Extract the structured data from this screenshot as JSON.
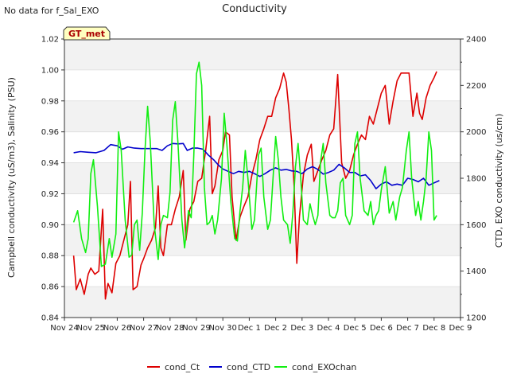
{
  "header": {
    "no_data_note": "No data for f_Sal_EXO",
    "title": "Conductivity",
    "badge": "GT_met"
  },
  "chart_data": {
    "type": "line",
    "title": "Conductivity",
    "ylabel_left": "Campbell conductivity (uS/m3), Salinity (PSU)",
    "ylabel_right": "CTD, EXO conductivity (us/cm)",
    "xlim": [
      0,
      15
    ],
    "ylim_left": [
      0.84,
      1.02
    ],
    "ylim_right": [
      1200,
      2400
    ],
    "x_ticks": [
      {
        "x": 0,
        "label": "Nov 24"
      },
      {
        "x": 1,
        "label": "Nov 25"
      },
      {
        "x": 2,
        "label": "Nov 26"
      },
      {
        "x": 3,
        "label": "Nov 27"
      },
      {
        "x": 4,
        "label": "Nov 28"
      },
      {
        "x": 5,
        "label": "Nov 29"
      },
      {
        "x": 6,
        "label": "Nov 30"
      },
      {
        "x": 7,
        "label": "Dec 1"
      },
      {
        "x": 8,
        "label": "Dec 2"
      },
      {
        "x": 9,
        "label": "Dec 3"
      },
      {
        "x": 10,
        "label": "Dec 4"
      },
      {
        "x": 11,
        "label": "Dec 5"
      },
      {
        "x": 12,
        "label": "Dec 6"
      },
      {
        "x": 13,
        "label": "Dec 7"
      },
      {
        "x": 14,
        "label": "Dec 8"
      },
      {
        "x": 15,
        "label": "Dec 9"
      }
    ],
    "y_ticks_left": [
      "0.84",
      "0.86",
      "0.88",
      "0.90",
      "0.92",
      "0.94",
      "0.96",
      "0.98",
      "1.00",
      "1.02"
    ],
    "y_ticks_right": [
      "1200",
      "1400",
      "1600",
      "1800",
      "2000",
      "2200",
      "2400"
    ],
    "grid": "horizontal alternating bands",
    "legend_position": "bottom",
    "series": [
      {
        "name": "cond_Ct",
        "axis": "left",
        "color": "#dd0000",
        "points": [
          [
            0.35,
            0.88
          ],
          [
            0.45,
            0.858
          ],
          [
            0.6,
            0.865
          ],
          [
            0.75,
            0.855
          ],
          [
            0.9,
            0.868
          ],
          [
            1.0,
            0.872
          ],
          [
            1.15,
            0.868
          ],
          [
            1.3,
            0.87
          ],
          [
            1.45,
            0.91
          ],
          [
            1.55,
            0.852
          ],
          [
            1.65,
            0.862
          ],
          [
            1.8,
            0.856
          ],
          [
            1.95,
            0.875
          ],
          [
            2.1,
            0.88
          ],
          [
            2.25,
            0.89
          ],
          [
            2.4,
            0.9
          ],
          [
            2.5,
            0.928
          ],
          [
            2.6,
            0.858
          ],
          [
            2.75,
            0.86
          ],
          [
            2.9,
            0.874
          ],
          [
            3.0,
            0.878
          ],
          [
            3.15,
            0.885
          ],
          [
            3.3,
            0.89
          ],
          [
            3.45,
            0.898
          ],
          [
            3.55,
            0.925
          ],
          [
            3.65,
            0.885
          ],
          [
            3.75,
            0.88
          ],
          [
            3.9,
            0.9
          ],
          [
            4.05,
            0.9
          ],
          [
            4.2,
            0.91
          ],
          [
            4.35,
            0.918
          ],
          [
            4.5,
            0.935
          ],
          [
            4.6,
            0.89
          ],
          [
            4.75,
            0.91
          ],
          [
            4.9,
            0.915
          ],
          [
            5.05,
            0.928
          ],
          [
            5.2,
            0.93
          ],
          [
            5.35,
            0.948
          ],
          [
            5.5,
            0.97
          ],
          [
            5.6,
            0.92
          ],
          [
            5.7,
            0.925
          ],
          [
            5.85,
            0.942
          ],
          [
            6.0,
            0.948
          ],
          [
            6.1,
            0.96
          ],
          [
            6.25,
            0.958
          ],
          [
            6.35,
            0.918
          ],
          [
            6.5,
            0.89
          ],
          [
            6.65,
            0.905
          ],
          [
            6.8,
            0.912
          ],
          [
            6.95,
            0.918
          ],
          [
            7.1,
            0.932
          ],
          [
            7.25,
            0.942
          ],
          [
            7.4,
            0.955
          ],
          [
            7.55,
            0.962
          ],
          [
            7.7,
            0.97
          ],
          [
            7.85,
            0.97
          ],
          [
            8.0,
            0.982
          ],
          [
            8.15,
            0.988
          ],
          [
            8.3,
            0.998
          ],
          [
            8.4,
            0.992
          ],
          [
            8.5,
            0.975
          ],
          [
            8.6,
            0.955
          ],
          [
            8.7,
            0.925
          ],
          [
            8.8,
            0.875
          ],
          [
            8.9,
            0.905
          ],
          [
            9.05,
            0.932
          ],
          [
            9.2,
            0.945
          ],
          [
            9.35,
            0.952
          ],
          [
            9.45,
            0.928
          ],
          [
            9.6,
            0.935
          ],
          [
            9.75,
            0.942
          ],
          [
            9.9,
            0.948
          ],
          [
            10.05,
            0.958
          ],
          [
            10.2,
            0.962
          ],
          [
            10.35,
            0.997
          ],
          [
            10.5,
            0.94
          ],
          [
            10.65,
            0.93
          ],
          [
            10.8,
            0.935
          ],
          [
            10.95,
            0.945
          ],
          [
            11.1,
            0.952
          ],
          [
            11.25,
            0.958
          ],
          [
            11.4,
            0.955
          ],
          [
            11.55,
            0.97
          ],
          [
            11.7,
            0.965
          ],
          [
            11.85,
            0.975
          ],
          [
            12.0,
            0.985
          ],
          [
            12.15,
            0.99
          ],
          [
            12.3,
            0.965
          ],
          [
            12.45,
            0.98
          ],
          [
            12.6,
            0.993
          ],
          [
            12.75,
            0.998
          ],
          [
            12.9,
            0.998
          ],
          [
            13.05,
            0.998
          ],
          [
            13.2,
            0.97
          ],
          [
            13.35,
            0.985
          ],
          [
            13.45,
            0.972
          ],
          [
            13.55,
            0.968
          ],
          [
            13.7,
            0.982
          ],
          [
            13.85,
            0.99
          ],
          [
            14.0,
            0.995
          ],
          [
            14.1,
            0.999
          ]
        ]
      },
      {
        "name": "cond_CTD",
        "axis": "right",
        "color": "#0000cc",
        "points": [
          [
            0.35,
            1910
          ],
          [
            0.6,
            1915
          ],
          [
            0.9,
            1912
          ],
          [
            1.2,
            1910
          ],
          [
            1.5,
            1920
          ],
          [
            1.75,
            1945
          ],
          [
            2.0,
            1940
          ],
          [
            2.2,
            1925
          ],
          [
            2.4,
            1935
          ],
          [
            2.65,
            1930
          ],
          [
            2.9,
            1928
          ],
          [
            3.2,
            1928
          ],
          [
            3.5,
            1928
          ],
          [
            3.7,
            1920
          ],
          [
            3.9,
            1940
          ],
          [
            4.1,
            1950
          ],
          [
            4.3,
            1948
          ],
          [
            4.5,
            1950
          ],
          [
            4.65,
            1920
          ],
          [
            4.85,
            1930
          ],
          [
            5.05,
            1930
          ],
          [
            5.25,
            1925
          ],
          [
            5.45,
            1900
          ],
          [
            5.65,
            1880
          ],
          [
            5.85,
            1855
          ],
          [
            6.0,
            1840
          ],
          [
            6.2,
            1830
          ],
          [
            6.4,
            1820
          ],
          [
            6.6,
            1830
          ],
          [
            6.8,
            1825
          ],
          [
            7.0,
            1830
          ],
          [
            7.2,
            1820
          ],
          [
            7.4,
            1808
          ],
          [
            7.6,
            1820
          ],
          [
            7.8,
            1835
          ],
          [
            8.0,
            1845
          ],
          [
            8.2,
            1835
          ],
          [
            8.4,
            1838
          ],
          [
            8.6,
            1832
          ],
          [
            8.8,
            1830
          ],
          [
            9.0,
            1820
          ],
          [
            9.2,
            1840
          ],
          [
            9.4,
            1850
          ],
          [
            9.6,
            1838
          ],
          [
            9.8,
            1818
          ],
          [
            10.0,
            1825
          ],
          [
            10.2,
            1835
          ],
          [
            10.4,
            1860
          ],
          [
            10.6,
            1845
          ],
          [
            10.8,
            1825
          ],
          [
            11.0,
            1825
          ],
          [
            11.2,
            1810
          ],
          [
            11.4,
            1815
          ],
          [
            11.6,
            1790
          ],
          [
            11.8,
            1755
          ],
          [
            12.0,
            1775
          ],
          [
            12.2,
            1785
          ],
          [
            12.4,
            1770
          ],
          [
            12.6,
            1775
          ],
          [
            12.8,
            1770
          ],
          [
            13.0,
            1800
          ],
          [
            13.2,
            1795
          ],
          [
            13.4,
            1785
          ],
          [
            13.6,
            1800
          ],
          [
            13.8,
            1770
          ],
          [
            14.0,
            1780
          ],
          [
            14.2,
            1790
          ]
        ]
      },
      {
        "name": "cond_EXOchan",
        "axis": "right",
        "color": "#11ee11",
        "points": [
          [
            0.35,
            1610
          ],
          [
            0.5,
            1660
          ],
          [
            0.65,
            1540
          ],
          [
            0.8,
            1480
          ],
          [
            0.9,
            1540
          ],
          [
            1.0,
            1820
          ],
          [
            1.1,
            1880
          ],
          [
            1.25,
            1680
          ],
          [
            1.4,
            1420
          ],
          [
            1.55,
            1430
          ],
          [
            1.7,
            1540
          ],
          [
            1.8,
            1460
          ],
          [
            1.95,
            1560
          ],
          [
            2.05,
            2000
          ],
          [
            2.15,
            1920
          ],
          [
            2.3,
            1620
          ],
          [
            2.45,
            1460
          ],
          [
            2.55,
            1470
          ],
          [
            2.65,
            1600
          ],
          [
            2.75,
            1620
          ],
          [
            2.85,
            1490
          ],
          [
            2.95,
            1650
          ],
          [
            3.05,
            1920
          ],
          [
            3.15,
            2110
          ],
          [
            3.25,
            1960
          ],
          [
            3.4,
            1600
          ],
          [
            3.55,
            1450
          ],
          [
            3.65,
            1600
          ],
          [
            3.75,
            1640
          ],
          [
            3.9,
            1630
          ],
          [
            4.0,
            1740
          ],
          [
            4.1,
            2050
          ],
          [
            4.2,
            2130
          ],
          [
            4.3,
            1950
          ],
          [
            4.45,
            1620
          ],
          [
            4.55,
            1500
          ],
          [
            4.7,
            1660
          ],
          [
            4.8,
            1630
          ],
          [
            4.9,
            1900
          ],
          [
            5.0,
            2250
          ],
          [
            5.1,
            2300
          ],
          [
            5.2,
            2200
          ],
          [
            5.3,
            1760
          ],
          [
            5.4,
            1600
          ],
          [
            5.5,
            1610
          ],
          [
            5.6,
            1640
          ],
          [
            5.7,
            1560
          ],
          [
            5.8,
            1620
          ],
          [
            5.95,
            1800
          ],
          [
            6.05,
            2080
          ],
          [
            6.15,
            1950
          ],
          [
            6.3,
            1700
          ],
          [
            6.45,
            1540
          ],
          [
            6.55,
            1530
          ],
          [
            6.65,
            1660
          ],
          [
            6.75,
            1760
          ],
          [
            6.85,
            1920
          ],
          [
            6.95,
            1800
          ],
          [
            7.1,
            1580
          ],
          [
            7.2,
            1620
          ],
          [
            7.35,
            1900
          ],
          [
            7.45,
            1930
          ],
          [
            7.55,
            1720
          ],
          [
            7.7,
            1580
          ],
          [
            7.8,
            1620
          ],
          [
            7.9,
            1800
          ],
          [
            8.0,
            1980
          ],
          [
            8.1,
            1880
          ],
          [
            8.2,
            1720
          ],
          [
            8.3,
            1620
          ],
          [
            8.45,
            1600
          ],
          [
            8.55,
            1520
          ],
          [
            8.65,
            1650
          ],
          [
            8.75,
            1850
          ],
          [
            8.85,
            1950
          ],
          [
            8.95,
            1800
          ],
          [
            9.05,
            1620
          ],
          [
            9.2,
            1600
          ],
          [
            9.3,
            1690
          ],
          [
            9.4,
            1640
          ],
          [
            9.5,
            1600
          ],
          [
            9.6,
            1640
          ],
          [
            9.7,
            1870
          ],
          [
            9.8,
            1950
          ],
          [
            9.9,
            1780
          ],
          [
            10.05,
            1640
          ],
          [
            10.15,
            1630
          ],
          [
            10.25,
            1630
          ],
          [
            10.35,
            1660
          ],
          [
            10.45,
            1780
          ],
          [
            10.55,
            1800
          ],
          [
            10.65,
            1640
          ],
          [
            10.8,
            1600
          ],
          [
            10.9,
            1640
          ],
          [
            11.0,
            1950
          ],
          [
            11.1,
            2000
          ],
          [
            11.2,
            1800
          ],
          [
            11.35,
            1660
          ],
          [
            11.5,
            1640
          ],
          [
            11.6,
            1700
          ],
          [
            11.7,
            1600
          ],
          [
            11.8,
            1640
          ],
          [
            11.9,
            1660
          ],
          [
            12.0,
            1750
          ],
          [
            12.15,
            1850
          ],
          [
            12.3,
            1650
          ],
          [
            12.45,
            1700
          ],
          [
            12.55,
            1620
          ],
          [
            12.7,
            1720
          ],
          [
            12.8,
            1760
          ],
          [
            12.95,
            1920
          ],
          [
            13.05,
            2000
          ],
          [
            13.15,
            1800
          ],
          [
            13.3,
            1640
          ],
          [
            13.4,
            1700
          ],
          [
            13.5,
            1620
          ],
          [
            13.6,
            1700
          ],
          [
            13.7,
            1800
          ],
          [
            13.8,
            2000
          ],
          [
            13.9,
            1920
          ],
          [
            14.0,
            1620
          ],
          [
            14.1,
            1640
          ]
        ]
      }
    ]
  }
}
